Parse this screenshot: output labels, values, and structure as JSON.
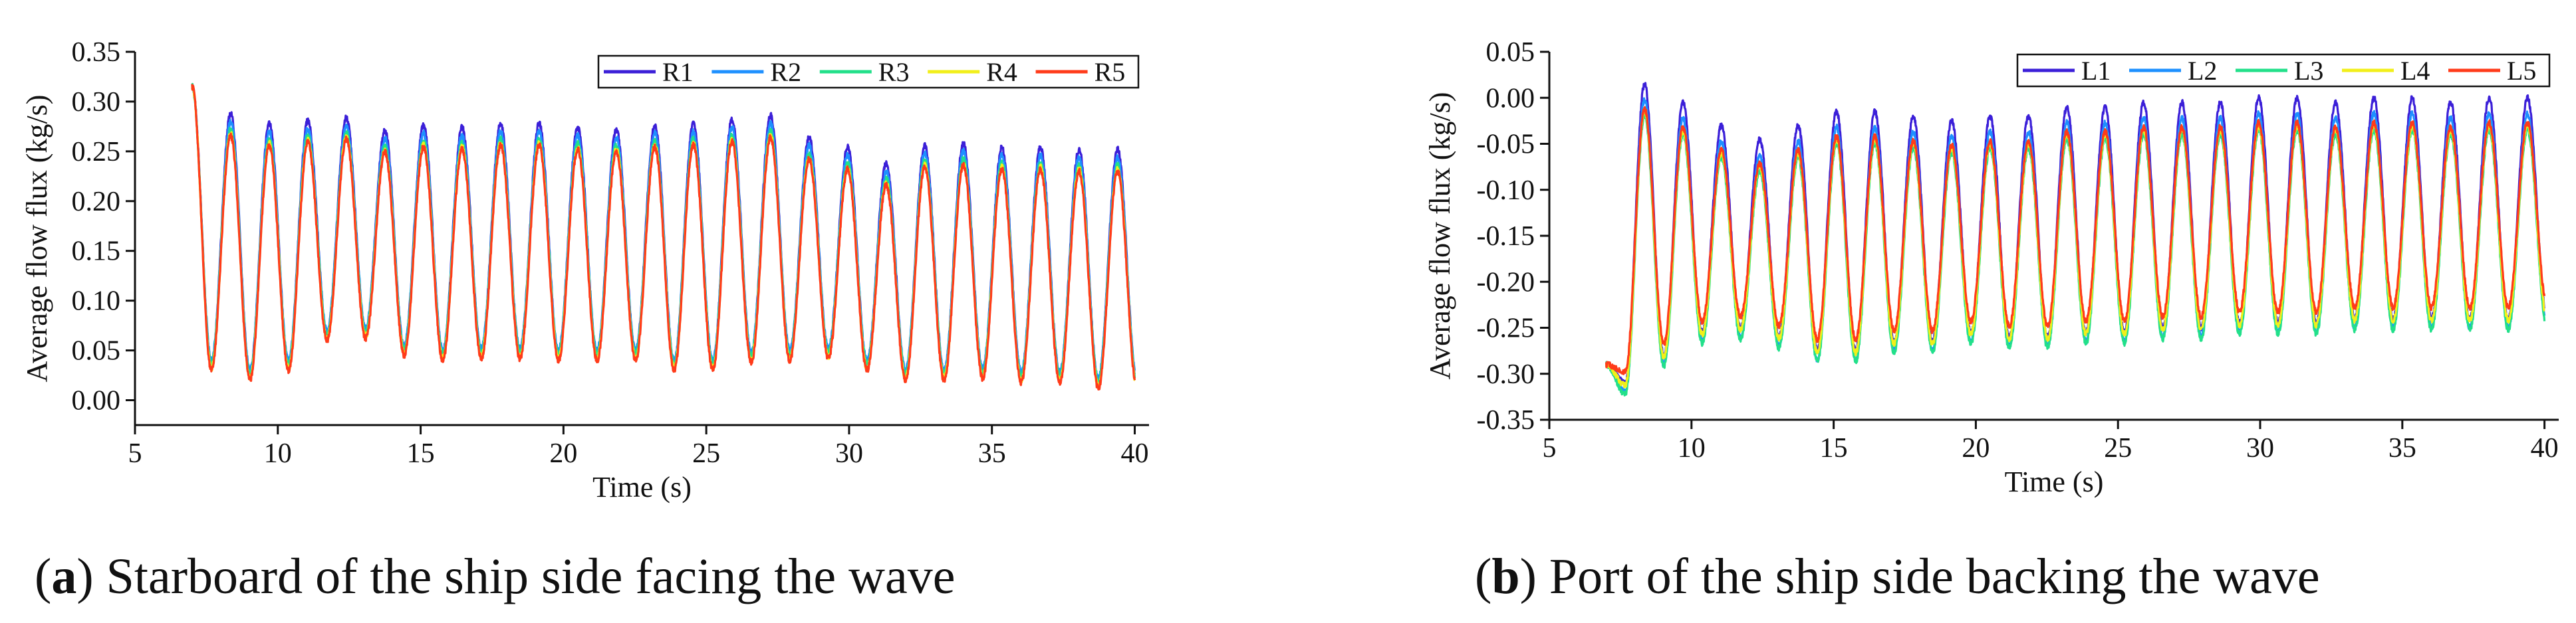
{
  "chart_data": [
    {
      "type": "line",
      "panel": "a",
      "caption_letter": "a",
      "caption_text": " Starboard of the ship side facing the wave",
      "xlabel": "Time (s)",
      "ylabel": "Average flow flux (kg/s)",
      "xlim": [
        5,
        40.5
      ],
      "ylim": [
        -0.025,
        0.35
      ],
      "xticks": [
        5,
        10,
        15,
        20,
        25,
        30,
        35,
        40
      ],
      "yticks": [
        0.0,
        0.05,
        0.1,
        0.15,
        0.2,
        0.25,
        0.3,
        0.35
      ],
      "t_start": 7.0,
      "t_end": 40.0,
      "period": 1.35,
      "initial_peak": 0.315,
      "peaks_base": [
        0.262,
        0.272,
        0.262,
        0.265,
        0.268,
        0.255,
        0.26,
        0.258,
        0.262,
        0.262,
        0.258,
        0.256,
        0.26,
        0.262,
        0.266,
        0.27,
        0.248,
        0.238,
        0.222,
        0.24,
        0.242,
        0.238,
        0.238,
        0.236,
        0.236
      ],
      "troughs_base": [
        0.03,
        0.02,
        0.03,
        0.06,
        0.062,
        0.045,
        0.04,
        0.042,
        0.042,
        0.04,
        0.04,
        0.04,
        0.03,
        0.03,
        0.038,
        0.04,
        0.042,
        0.03,
        0.02,
        0.02,
        0.022,
        0.018,
        0.018,
        0.012,
        0.012
      ],
      "series": [
        {
          "name": "R1",
          "color": "#3b1fd8",
          "peak_offset": 0.016,
          "trough_offset": 0.008
        },
        {
          "name": "R2",
          "color": "#1e90ff",
          "peak_offset": 0.008,
          "trough_offset": 0.01
        },
        {
          "name": "R3",
          "color": "#22e08a",
          "peak_offset": 0.0,
          "trough_offset": 0.006
        },
        {
          "name": "R4",
          "color": "#f2ef1a",
          "peak_offset": -0.004,
          "trough_offset": 0.002
        },
        {
          "name": "R5",
          "color": "#ff3b1a",
          "peak_offset": -0.006,
          "trough_offset": 0.0
        }
      ]
    },
    {
      "type": "line",
      "panel": "b",
      "caption_letter": "b",
      "caption_text": " Port of the ship side backing the wave",
      "xlabel": "Time (s)",
      "ylabel": "Average flow flux (kg/s)",
      "xlim": [
        5,
        40.5
      ],
      "ylim": [
        -0.35,
        0.05
      ],
      "xticks": [
        5,
        10,
        15,
        20,
        25,
        30,
        35,
        40
      ],
      "yticks": [
        -0.35,
        -0.3,
        -0.25,
        -0.2,
        -0.15,
        -0.1,
        -0.05,
        0.0,
        0.05
      ],
      "t_start": 7.0,
      "t_end": 40.0,
      "period": 1.35,
      "initial_peak": -0.29,
      "peaks_base": [
        -0.03,
        -0.01,
        -0.03,
        -0.055,
        -0.07,
        -0.055,
        -0.04,
        -0.04,
        -0.045,
        -0.05,
        -0.045,
        -0.045,
        -0.035,
        -0.035,
        -0.03,
        -0.03,
        -0.03,
        -0.025,
        -0.025,
        -0.03,
        -0.025,
        -0.025,
        -0.03,
        -0.025,
        -0.025
      ],
      "troughs_base": [
        -0.3,
        -0.27,
        -0.245,
        -0.24,
        -0.25,
        -0.265,
        -0.265,
        -0.255,
        -0.255,
        -0.245,
        -0.25,
        -0.25,
        -0.245,
        -0.245,
        -0.24,
        -0.24,
        -0.235,
        -0.235,
        -0.235,
        -0.23,
        -0.23,
        -0.23,
        -0.23,
        -0.23,
        -0.225
      ],
      "series": [
        {
          "name": "L1",
          "color": "#3b1fd8",
          "peak_offset": 0.025,
          "trough_offset": -0.01
        },
        {
          "name": "L2",
          "color": "#1e90ff",
          "peak_offset": 0.008,
          "trough_offset": -0.02
        },
        {
          "name": "L3",
          "color": "#22e08a",
          "peak_offset": -0.01,
          "trough_offset": -0.022
        },
        {
          "name": "L4",
          "color": "#f2ef1a",
          "peak_offset": -0.005,
          "trough_offset": -0.012
        },
        {
          "name": "L5",
          "color": "#ff3b1a",
          "peak_offset": -0.002,
          "trough_offset": 0.002
        }
      ]
    }
  ]
}
